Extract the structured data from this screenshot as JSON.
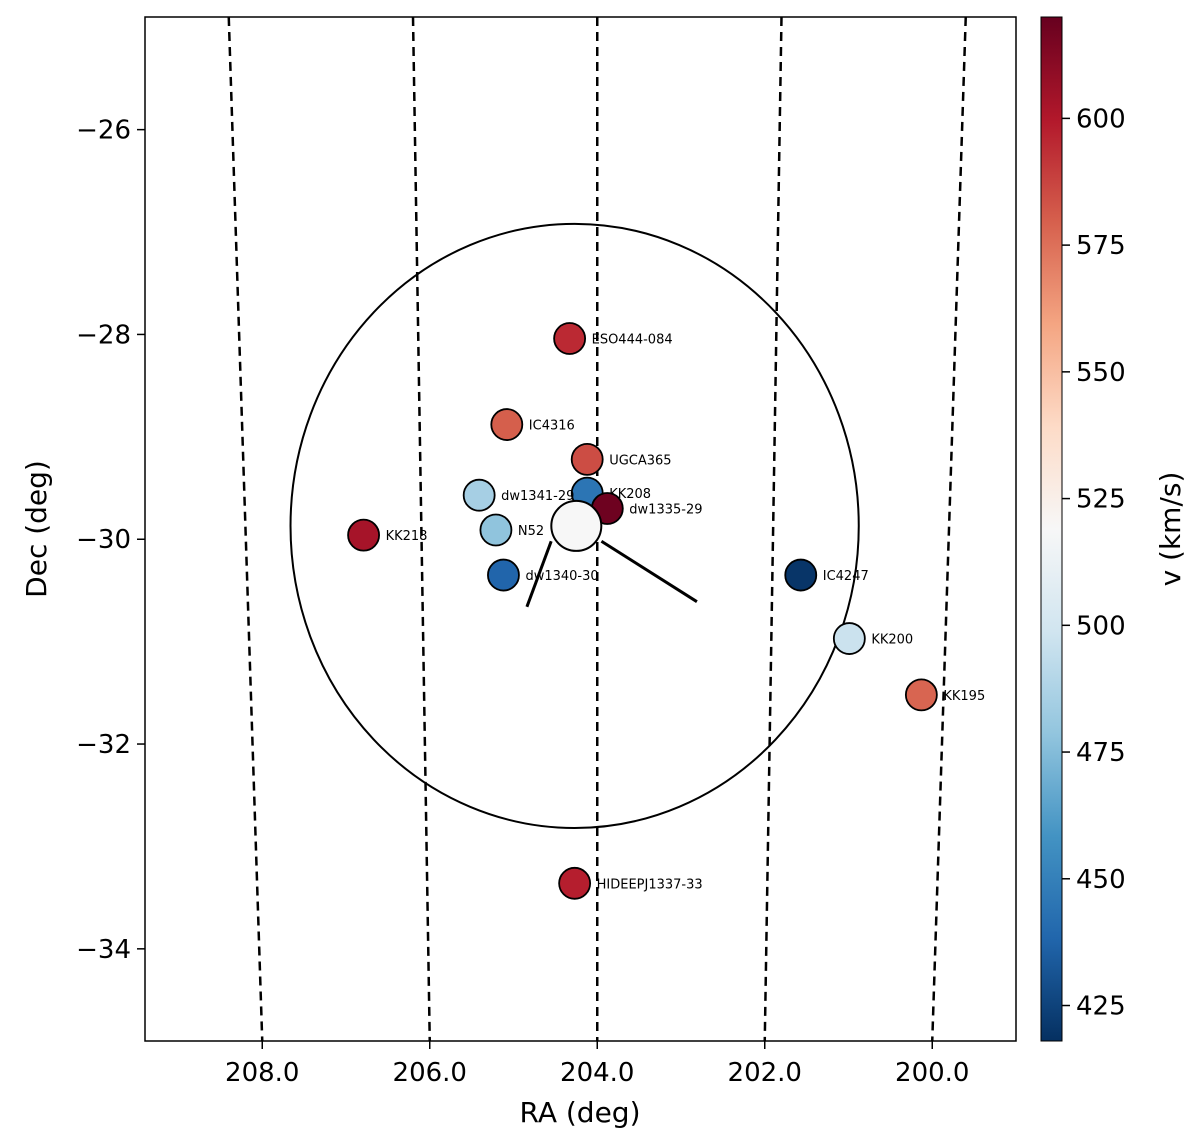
{
  "chart_data": {
    "type": "scatter",
    "xlabel": "RA (deg)",
    "ylabel": "Dec (deg)",
    "xlim": [
      209.4,
      199.0
    ],
    "ylim": [
      -34.9,
      -24.9
    ],
    "xticks": [
      208.0,
      206.0,
      204.0,
      202.0,
      200.0
    ],
    "xtick_labels": [
      "208.0",
      "206.0",
      "204.0",
      "202.0",
      "200.0"
    ],
    "yticks": [
      -26,
      -28,
      -30,
      -32,
      -34
    ],
    "ytick_labels": [
      "−26",
      "−28",
      "−30",
      "−32",
      "−34"
    ],
    "colorbar": {
      "label": "v (km/s)",
      "colormap": "RdBu_r",
      "range": [
        418,
        620
      ],
      "ticks": [
        425,
        450,
        475,
        500,
        525,
        550,
        575,
        600
      ],
      "tick_labels": [
        "425",
        "450",
        "475",
        "500",
        "525",
        "550",
        "575",
        "600"
      ]
    },
    "central_galaxy": {
      "ra": 204.25,
      "dec": -29.87,
      "v": 519
    },
    "circle": {
      "ra_center": 204.27,
      "dec_center": -29.87,
      "radius_deg": 2.95
    },
    "lines": [
      {
        "from": [
          204.55,
          -30.02
        ],
        "to": [
          204.84,
          -30.66
        ]
      },
      {
        "from": [
          203.95,
          -30.02
        ],
        "to": [
          202.81,
          -30.61
        ]
      }
    ],
    "meridians": [
      {
        "dec_top": -24.9,
        "ra_top": 208.4,
        "dec_bottom": -34.9,
        "ra_bottom": 208.0
      },
      {
        "dec_top": -24.9,
        "ra_top": 206.2,
        "dec_bottom": -34.9,
        "ra_bottom": 206.0
      },
      {
        "dec_top": -24.9,
        "ra_top": 204.0,
        "dec_bottom": -34.9,
        "ra_bottom": 204.0
      },
      {
        "dec_top": -24.9,
        "ra_top": 201.8,
        "dec_bottom": -34.9,
        "ra_bottom": 202.0
      },
      {
        "dec_top": -24.9,
        "ra_top": 199.6,
        "dec_bottom": -34.9,
        "ra_bottom": 200.0
      }
    ],
    "points": [
      {
        "name": "ESO444-084",
        "ra": 204.33,
        "dec": -28.04,
        "v": 595
      },
      {
        "name": "IC4316",
        "ra": 205.08,
        "dec": -28.88,
        "v": 580
      },
      {
        "name": "UGCA365",
        "ra": 204.12,
        "dec": -29.22,
        "v": 585
      },
      {
        "name": "KK208",
        "ra": 204.12,
        "dec": -29.55,
        "v": 445
      },
      {
        "name": "dw1335-29",
        "ra": 203.88,
        "dec": -29.7,
        "v": 618
      },
      {
        "name": "dw1341-29",
        "ra": 205.41,
        "dec": -29.57,
        "v": 485
      },
      {
        "name": "N52",
        "ra": 205.21,
        "dec": -29.91,
        "v": 478
      },
      {
        "name": "KK218",
        "ra": 206.79,
        "dec": -29.96,
        "v": 603
      },
      {
        "name": "dw1340-30",
        "ra": 205.12,
        "dec": -30.35,
        "v": 438
      },
      {
        "name": "IC4247",
        "ra": 201.57,
        "dec": -30.35,
        "v": 420
      },
      {
        "name": "KK200",
        "ra": 200.99,
        "dec": -30.97,
        "v": 497
      },
      {
        "name": "KK195",
        "ra": 200.13,
        "dec": -31.52,
        "v": 578
      },
      {
        "name": "HIDEEPJ1337-33",
        "ra": 204.27,
        "dec": -33.36,
        "v": 598
      }
    ]
  }
}
